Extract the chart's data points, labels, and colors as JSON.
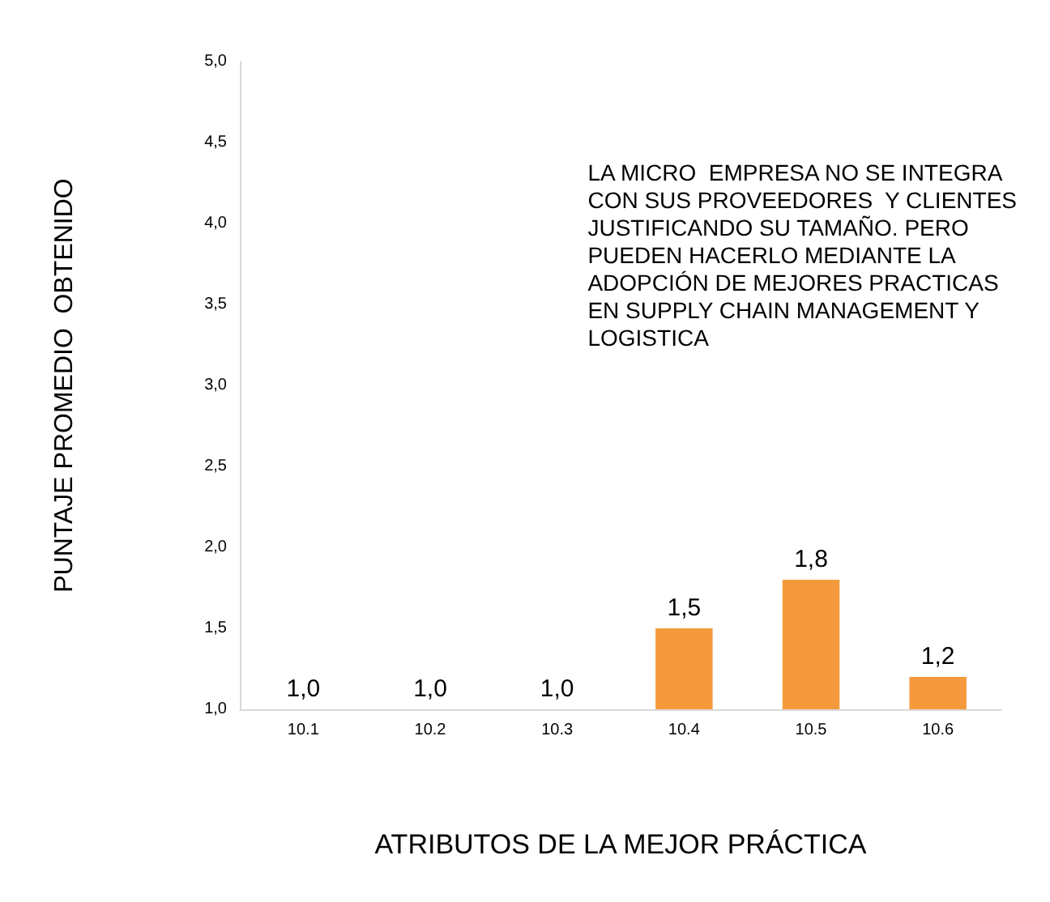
{
  "chart_data": {
    "type": "bar",
    "xlabel": "ATRIBUTOS DE LA MEJOR PRÁCTICA",
    "ylabel": "PUNTAJE PROMEDIO  OBTENIDO",
    "categories": [
      "10.1",
      "10.2",
      "10.3",
      "10.4",
      "10.5",
      "10.6"
    ],
    "values": [
      1.0,
      1.0,
      1.0,
      1.5,
      1.8,
      1.2
    ],
    "colors": [
      "#8b5a2b",
      "#8b5a2b",
      "#8b5a2b",
      "#f49a3c",
      "#f49a3c",
      "#f49a3c"
    ],
    "value_labels": [
      "1,0",
      "1,0",
      "1,0",
      "1,5",
      "1,8",
      "1,2"
    ],
    "ylim": [
      1,
      5
    ],
    "yticks": [
      {
        "value": 1,
        "label": "1,0"
      },
      {
        "value": 1.5,
        "label": "1,5"
      },
      {
        "value": 2,
        "label": "2,0"
      },
      {
        "value": 2.5,
        "label": "2,5"
      },
      {
        "value": 3,
        "label": "3,0"
      },
      {
        "value": 3.5,
        "label": "3,5"
      },
      {
        "value": 4,
        "label": "4,0"
      },
      {
        "value": 4.5,
        "label": "4,5"
      },
      {
        "value": 5,
        "label": "5,0"
      }
    ],
    "annotations": [
      "LA MICRO  EMPRESA NO SE INTEGRA\nCON SUS PROVEEDORES  Y CLIENTES\nJUSTIFICANDO SU TAMAÑO. PERO\nPUEDEN HACERLO MEDIANTE LA\nADOPCIÓN DE MEJORES PRACTICAS\nEN SUPPLY CHAIN MANAGEMENT Y\nLOGISTICA"
    ]
  }
}
